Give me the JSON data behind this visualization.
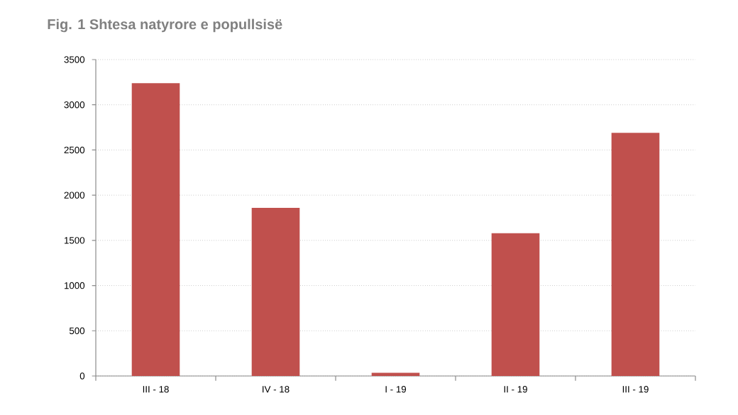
{
  "chart_data": {
    "type": "bar",
    "title": "Fig. 1 Shtesa natyrore e popullsisë",
    "categories": [
      "III - 18",
      "IV - 18",
      "I - 19",
      "II - 19",
      "III - 19"
    ],
    "values": [
      3240,
      1860,
      35,
      1580,
      2690
    ],
    "color": "#c0504d",
    "ylim": [
      0,
      3500
    ],
    "yticks": [
      0,
      500,
      1000,
      1500,
      2000,
      2500,
      3000,
      3500
    ],
    "grid": "y"
  }
}
